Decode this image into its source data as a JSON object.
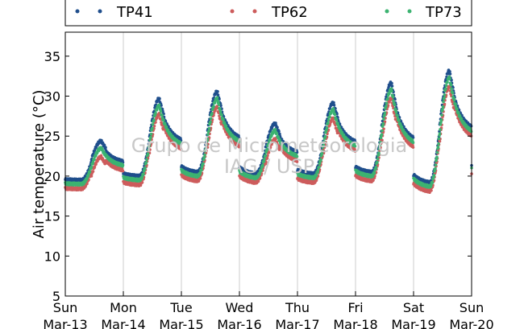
{
  "chart_data": {
    "type": "scatter",
    "ylabel": "Air temperature (°C)",
    "xlabel": "",
    "ylim": [
      5,
      38
    ],
    "yticks": [
      5,
      10,
      15,
      20,
      25,
      30,
      35
    ],
    "xlim_days": [
      0,
      7
    ],
    "x_ticks": [
      {
        "day": "Sun",
        "date": "Mar-13"
      },
      {
        "day": "Mon",
        "date": "Mar-14"
      },
      {
        "day": "Tue",
        "date": "Mar-15"
      },
      {
        "day": "Wed",
        "date": "Mar-16"
      },
      {
        "day": "Thu",
        "date": "Mar-17"
      },
      {
        "day": "Fri",
        "date": "Mar-18"
      },
      {
        "day": "Sat",
        "date": "Mar-19"
      },
      {
        "day": "Sun",
        "date": "Mar-20"
      }
    ],
    "grid": "vertical",
    "legend_position": "top, outside plot",
    "watermark": [
      "Grupo de Micrometeorologia",
      "IAG / USP"
    ],
    "daily_cycle": {
      "min": [
        19,
        19.5,
        20,
        19.8,
        19.8,
        20,
        18.7,
        20
      ],
      "max": [
        23.5,
        28.8,
        29.7,
        25.7,
        28.3,
        30.8,
        32.3
      ]
    },
    "series": [
      {
        "name": "TP41",
        "color": "#1f4e8c",
        "offset": 0.5
      },
      {
        "name": "TP62",
        "color": "#cd5c5c",
        "offset": -0.6
      },
      {
        "name": "TP73",
        "color": "#3cb371",
        "offset": 0.0
      }
    ]
  }
}
